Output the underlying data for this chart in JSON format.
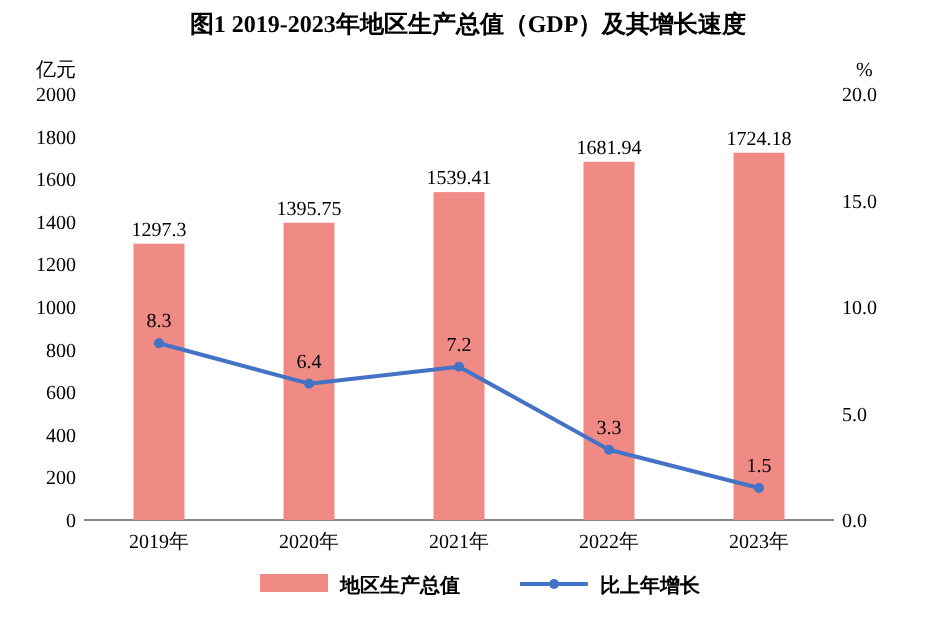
{
  "chart_data": {
    "type": "bar",
    "title": "图1  2019-2023年地区生产总值（GDP）及其增长速度",
    "ylabel": "亿元",
    "y2label": "%",
    "categories": [
      "2019年",
      "2020年",
      "2021年",
      "2022年",
      "2023年"
    ],
    "series": [
      {
        "name": "地区生产总值",
        "color": "#f08a85",
        "values": [
          1297.3,
          1395.75,
          1539.41,
          1681.94,
          1724.18
        ]
      },
      {
        "name": "比上年增长",
        "type": "line",
        "axis": "y2",
        "color": "#4472c4",
        "values": [
          8.3,
          6.4,
          7.2,
          3.3,
          1.5
        ]
      }
    ],
    "ylim": [
      0,
      2000
    ],
    "yticks": [
      0,
      200,
      400,
      600,
      800,
      1000,
      1200,
      1400,
      1600,
      1800,
      2000
    ],
    "y2lim": [
      0,
      20
    ],
    "y2ticks": [
      {
        "value": 0,
        "label": "0.0"
      },
      {
        "value": 5,
        "label": "5.0"
      },
      {
        "value": 10,
        "label": "10.0"
      },
      {
        "value": 15,
        "label": "15.0"
      },
      {
        "value": 20,
        "label": "20.0"
      }
    ],
    "data_labels": true,
    "legend": "bottom",
    "marker": "circle",
    "grid": false
  }
}
